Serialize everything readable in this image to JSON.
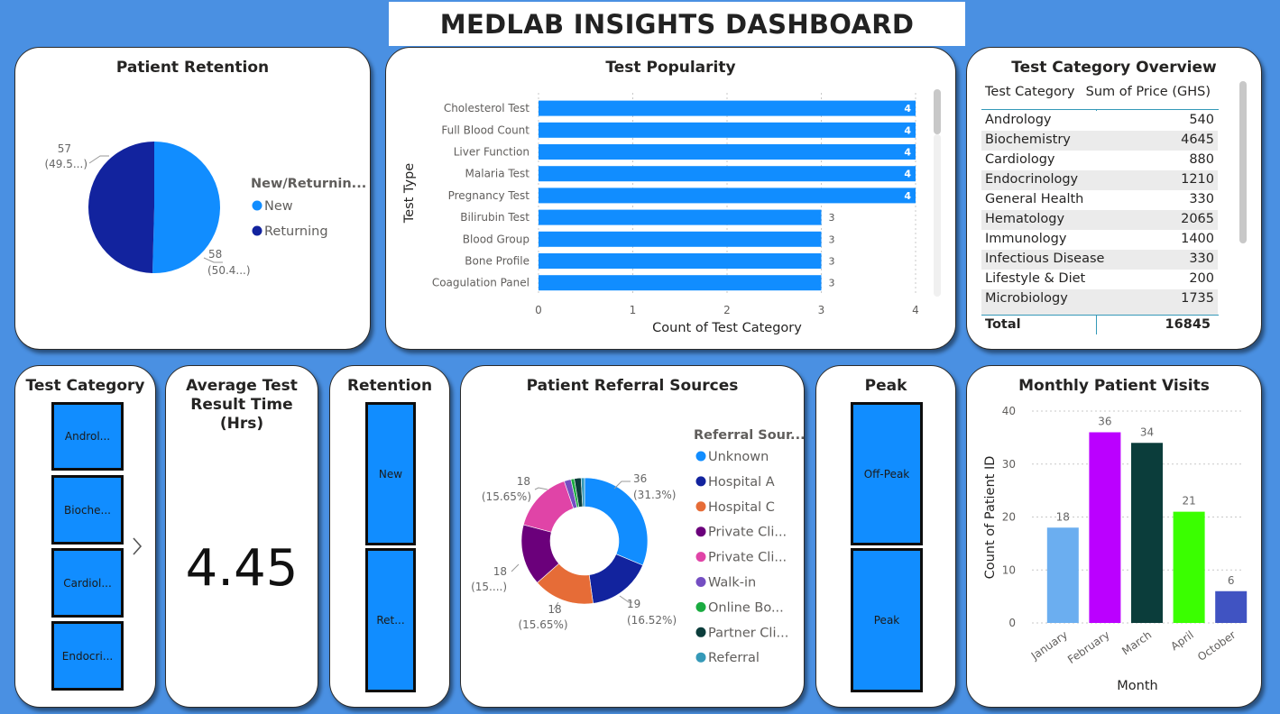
{
  "dashboard": {
    "title": "MEDLAB INSIGHTS DASHBOARD"
  },
  "colors": {
    "bright_blue": "#118dff",
    "navy": "#12239e",
    "orange": "#e66c37",
    "purple": "#6b007b",
    "pink": "#e044a7",
    "violet": "#744ec2",
    "green": "#1aab40",
    "dark_teal": "#0b3d3b",
    "teal": "#3599b8",
    "light_blue": "#6baef0",
    "magenta": "#bb00ff",
    "lime": "#3aff00",
    "indigo": "#4053c2"
  },
  "patient_retention": {
    "title": "Patient Retention",
    "legend_title": "New/Returnin...",
    "labels": [
      {
        "value": "57",
        "pct": "(49.5...)"
      },
      {
        "value": "58",
        "pct": "(50.4...)"
      }
    ]
  },
  "test_popularity": {
    "title": "Test Popularity",
    "ylabel": "Test Type",
    "xlabel": "Count of Test Category",
    "ticks": [
      "0",
      "1",
      "2",
      "3",
      "4"
    ]
  },
  "test_category_overview": {
    "title": "Test Category Overview",
    "col1": "Test Category",
    "col2": "Sum of Price (GHS)",
    "rows": [
      {
        "cat": "Andrology",
        "val": "540"
      },
      {
        "cat": "Biochemistry",
        "val": "4645"
      },
      {
        "cat": "Cardiology",
        "val": "880"
      },
      {
        "cat": "Endocrinology",
        "val": "1210"
      },
      {
        "cat": "General Health",
        "val": "330"
      },
      {
        "cat": "Hematology",
        "val": "2065"
      },
      {
        "cat": "Immunology",
        "val": "1400"
      },
      {
        "cat": "Infectious Disease",
        "val": "330"
      },
      {
        "cat": "Lifestyle & Diet",
        "val": "200"
      },
      {
        "cat": "Microbiology",
        "val": "1735"
      }
    ],
    "total_label": "Total",
    "total_value": "16845"
  },
  "test_category_slicer": {
    "title": "Test Category",
    "items": [
      "Androl...",
      "Bioche...",
      "Cardiol...",
      "Endocri..."
    ],
    "next_icon": "chevron-right-icon"
  },
  "avg_result_time": {
    "title_line1": "Average Test",
    "title_line2": "Result Time",
    "title_line3": "(Hrs)",
    "value": "4.45"
  },
  "retention_slicer": {
    "title": "Retention",
    "items": [
      "New",
      "Ret..."
    ]
  },
  "referral_sources": {
    "title": "Patient Referral Sources",
    "legend_title": "Referral Sour...",
    "labels": [
      {
        "value": "36",
        "pct": "(31.3%)"
      },
      {
        "value": "19",
        "pct": "(16.52%)"
      },
      {
        "value": "18",
        "pct": "(15.65%)"
      },
      {
        "value": "18",
        "pct": "(15....)"
      },
      {
        "value": "18",
        "pct": "(15.65%)"
      }
    ]
  },
  "peak_slicer": {
    "title": "Peak",
    "items": [
      "Off-Peak",
      "Peak"
    ]
  },
  "monthly_visits": {
    "title": "Monthly Patient Visits",
    "ylabel": "Count of Patient ID",
    "xlabel": "Month",
    "ticks": [
      "0",
      "10",
      "20",
      "30",
      "40"
    ]
  },
  "chart_data": [
    {
      "type": "pie",
      "title": "Patient Retention",
      "legend_title": "New/Returnin...",
      "categories": [
        "New",
        "Returning"
      ],
      "values": [
        58,
        57
      ],
      "colors": [
        "#118dff",
        "#12239e"
      ],
      "legend_placement": "right"
    },
    {
      "type": "bar",
      "orientation": "horizontal",
      "title": "Test Popularity",
      "xlabel": "Count of Test Category",
      "ylabel": "Test Type",
      "categories": [
        "Cholesterol Test",
        "Full Blood Count",
        "Liver Function",
        "Malaria Test",
        "Pregnancy Test",
        "Bilirubin Test",
        "Blood Group",
        "Bone Profile",
        "Coagulation Panel"
      ],
      "values": [
        4,
        4,
        4,
        4,
        4,
        3,
        3,
        3,
        3
      ],
      "xlim": [
        0,
        4
      ],
      "grid": true
    },
    {
      "type": "pie",
      "subtype": "donut",
      "title": "Patient Referral Sources",
      "legend_title": "Referral Sour...",
      "categories": [
        "Unknown",
        "Hospital A",
        "Hospital C",
        "Private Cli...",
        "Private Cli...",
        "Walk-in",
        "Online Bo...",
        "Partner Cli...",
        "Referral"
      ],
      "values": [
        36,
        19,
        18,
        18,
        18,
        2,
        1,
        2,
        1
      ],
      "colors": [
        "#118dff",
        "#12239e",
        "#e66c37",
        "#6b007b",
        "#e044a7",
        "#744ec2",
        "#1aab40",
        "#0b3d3b",
        "#3599b8"
      ],
      "legend_placement": "right"
    },
    {
      "type": "bar",
      "title": "Monthly Patient Visits",
      "xlabel": "Month",
      "ylabel": "Count of Patient ID",
      "categories": [
        "January",
        "February",
        "March",
        "April",
        "October"
      ],
      "values": [
        18,
        36,
        34,
        21,
        6
      ],
      "colors": [
        "#6baef0",
        "#bb00ff",
        "#0b3d3b",
        "#3aff00",
        "#4053c2"
      ],
      "ylim": [
        0,
        40
      ],
      "grid": true
    }
  ]
}
